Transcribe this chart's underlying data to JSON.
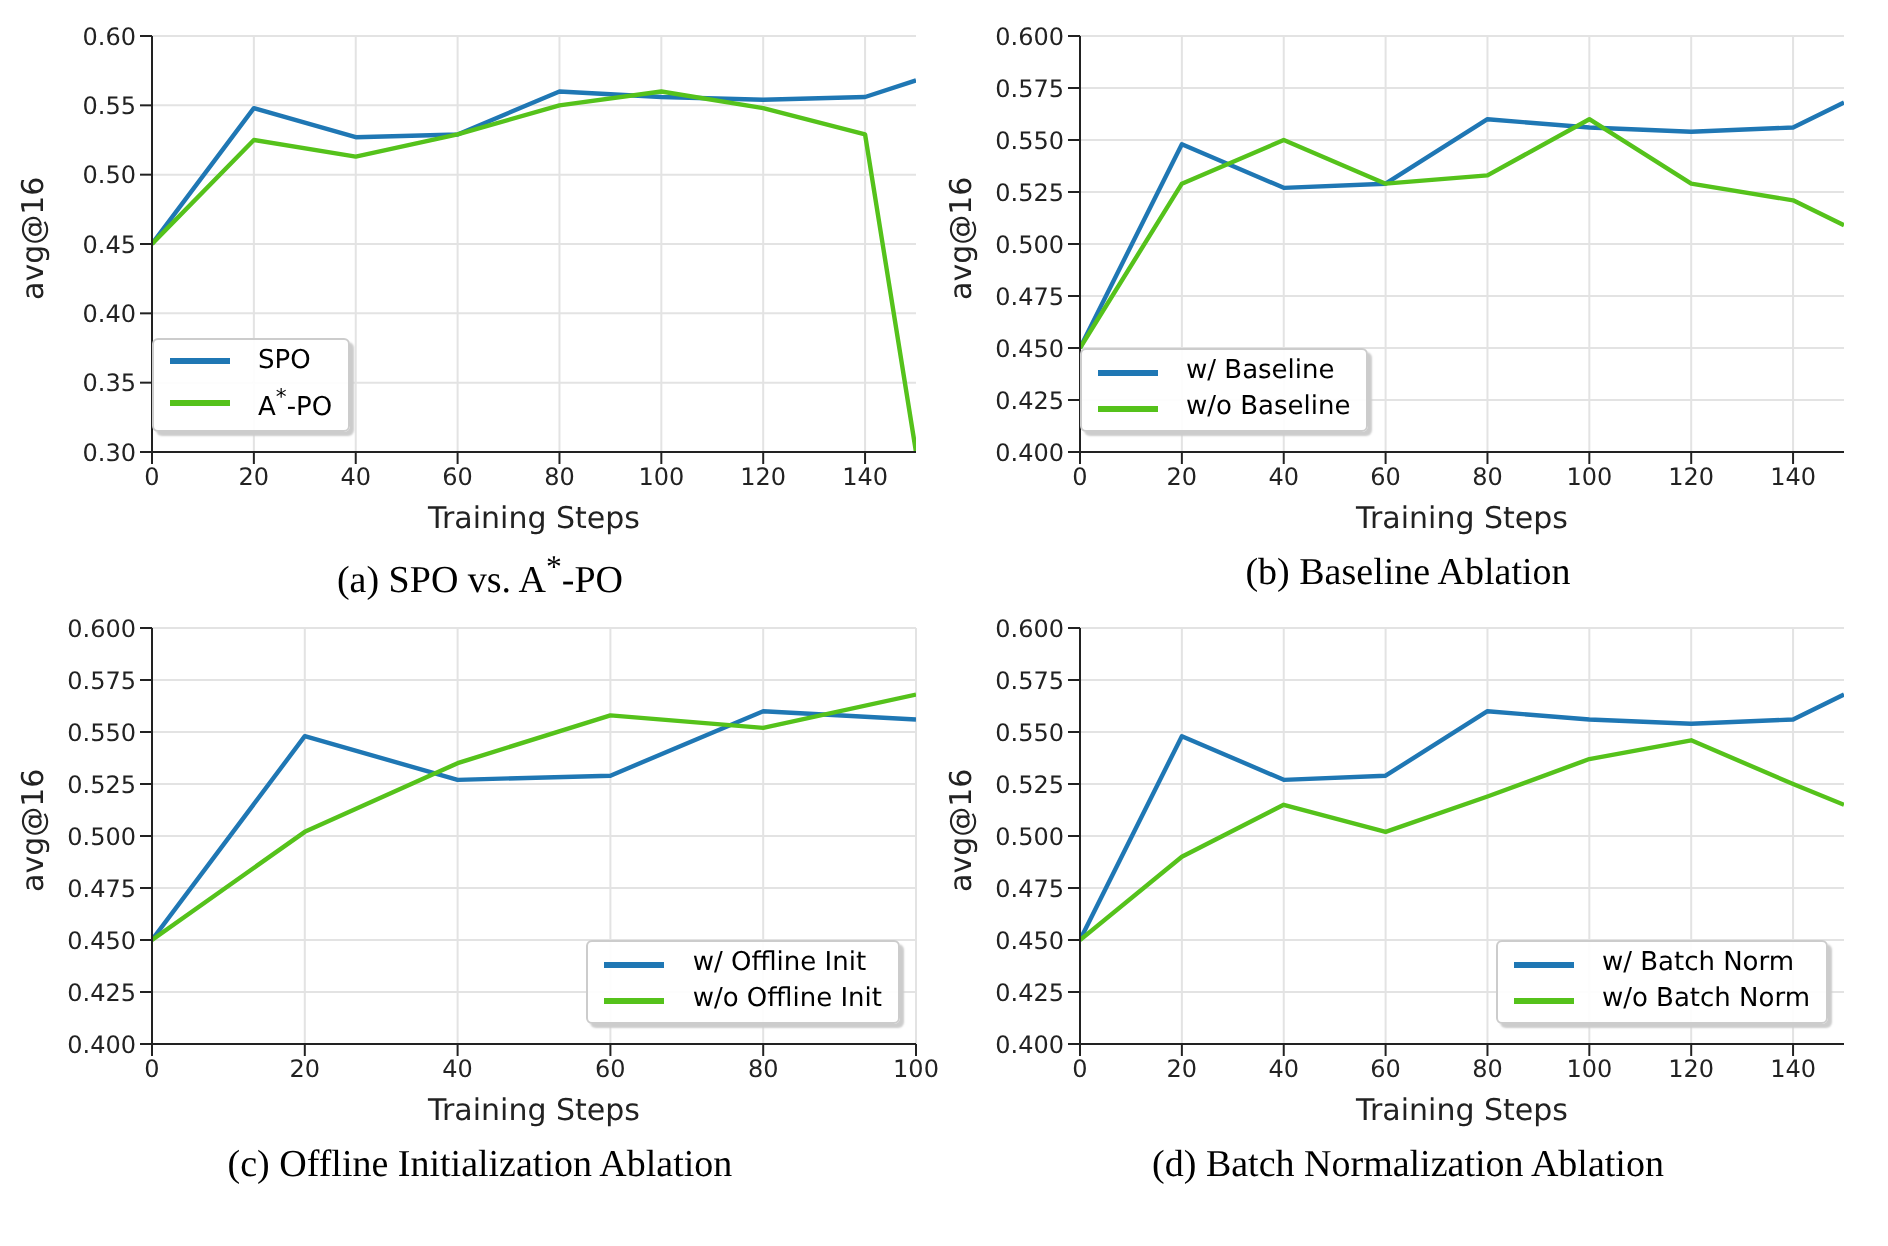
{
  "chart_data": [
    {
      "type": "line",
      "title": "(a) SPO vs. A$^{*}$-PO",
      "xlabel": "Training Steps",
      "ylabel": "avg@16",
      "x": [
        0,
        20,
        40,
        60,
        80,
        100,
        120,
        140,
        150
      ],
      "xlim": [
        0,
        150
      ],
      "xticks": [
        0,
        20,
        40,
        60,
        80,
        100,
        120,
        140
      ],
      "ylim": [
        0.3,
        0.6
      ],
      "yticks": [
        {
          "value": 0.3,
          "label": "0.30"
        },
        {
          "value": 0.35,
          "label": "0.35"
        },
        {
          "value": 0.4,
          "label": "0.40"
        },
        {
          "value": 0.45,
          "label": "0.45"
        },
        {
          "value": 0.5,
          "label": "0.50"
        },
        {
          "value": 0.55,
          "label": "0.55"
        },
        {
          "value": 0.6,
          "label": "0.60"
        }
      ],
      "grid": true,
      "legend": "bottom left",
      "series": [
        {
          "name": "SPO",
          "color": "#1f77b4",
          "values": [
            0.45,
            0.548,
            0.527,
            0.529,
            0.56,
            0.556,
            0.554,
            0.556,
            0.568
          ]
        },
        {
          "name": "A$^{*}$-PO",
          "color": "#55c21b",
          "values": [
            0.45,
            0.525,
            0.513,
            0.529,
            0.55,
            0.56,
            0.548,
            0.529,
            0.3
          ]
        }
      ]
    },
    {
      "type": "line",
      "title": "(b) Baseline Ablation",
      "xlabel": "Training Steps",
      "ylabel": "avg@16",
      "x": [
        0,
        20,
        40,
        60,
        80,
        100,
        120,
        140,
        150
      ],
      "xlim": [
        0,
        150
      ],
      "xticks": [
        0,
        20,
        40,
        60,
        80,
        100,
        120,
        140
      ],
      "ylim": [
        0.4,
        0.6
      ],
      "yticks": [
        {
          "value": 0.4,
          "label": "0.400"
        },
        {
          "value": 0.425,
          "label": "0.425"
        },
        {
          "value": 0.45,
          "label": "0.450"
        },
        {
          "value": 0.475,
          "label": "0.475"
        },
        {
          "value": 0.5,
          "label": "0.500"
        },
        {
          "value": 0.525,
          "label": "0.525"
        },
        {
          "value": 0.55,
          "label": "0.550"
        },
        {
          "value": 0.575,
          "label": "0.575"
        },
        {
          "value": 0.6,
          "label": "0.600"
        }
      ],
      "grid": true,
      "legend": "bottom left",
      "series": [
        {
          "name": "w/ Baseline",
          "color": "#1f77b4",
          "values": [
            0.45,
            0.548,
            0.527,
            0.529,
            0.56,
            0.556,
            0.554,
            0.556,
            0.568
          ]
        },
        {
          "name": "w/o Baseline",
          "color": "#55c21b",
          "values": [
            0.45,
            0.529,
            0.55,
            0.529,
            0.533,
            0.56,
            0.529,
            0.521,
            0.509
          ]
        }
      ]
    },
    {
      "type": "line",
      "title": "(c) Offline Initialization Ablation",
      "xlabel": "Training Steps",
      "ylabel": "avg@16",
      "x": [
        0,
        20,
        40,
        60,
        80,
        100
      ],
      "xlim": [
        0,
        100
      ],
      "xticks": [
        0,
        20,
        40,
        60,
        80,
        100
      ],
      "ylim": [
        0.4,
        0.6
      ],
      "yticks": [
        {
          "value": 0.4,
          "label": "0.400"
        },
        {
          "value": 0.425,
          "label": "0.425"
        },
        {
          "value": 0.45,
          "label": "0.450"
        },
        {
          "value": 0.475,
          "label": "0.475"
        },
        {
          "value": 0.5,
          "label": "0.500"
        },
        {
          "value": 0.525,
          "label": "0.525"
        },
        {
          "value": 0.55,
          "label": "0.550"
        },
        {
          "value": 0.575,
          "label": "0.575"
        },
        {
          "value": 0.6,
          "label": "0.600"
        }
      ],
      "grid": true,
      "legend": "bottom right",
      "series": [
        {
          "name": "w/ Offline Init",
          "color": "#1f77b4",
          "values": [
            0.45,
            0.548,
            0.527,
            0.529,
            0.56,
            0.556
          ]
        },
        {
          "name": "w/o Offline Init",
          "color": "#55c21b",
          "values": [
            0.45,
            0.502,
            0.535,
            0.558,
            0.552,
            0.568
          ]
        }
      ]
    },
    {
      "type": "line",
      "title": "(d) Batch Normalization Ablation",
      "xlabel": "Training Steps",
      "ylabel": "avg@16",
      "x": [
        0,
        20,
        40,
        60,
        80,
        100,
        120,
        140,
        150
      ],
      "xlim": [
        0,
        150
      ],
      "xticks": [
        0,
        20,
        40,
        60,
        80,
        100,
        120,
        140
      ],
      "ylim": [
        0.4,
        0.6
      ],
      "yticks": [
        {
          "value": 0.4,
          "label": "0.400"
        },
        {
          "value": 0.425,
          "label": "0.425"
        },
        {
          "value": 0.45,
          "label": "0.450"
        },
        {
          "value": 0.475,
          "label": "0.475"
        },
        {
          "value": 0.5,
          "label": "0.500"
        },
        {
          "value": 0.525,
          "label": "0.525"
        },
        {
          "value": 0.55,
          "label": "0.550"
        },
        {
          "value": 0.575,
          "label": "0.575"
        },
        {
          "value": 0.6,
          "label": "0.600"
        }
      ],
      "grid": true,
      "legend": "bottom right",
      "series": [
        {
          "name": "w/ Batch Norm",
          "color": "#1f77b4",
          "values": [
            0.45,
            0.548,
            0.527,
            0.529,
            0.56,
            0.556,
            0.554,
            0.556,
            0.568
          ]
        },
        {
          "name": "w/o Batch Norm",
          "color": "#55c21b",
          "values": [
            0.45,
            0.49,
            0.515,
            0.502,
            0.519,
            0.537,
            0.546,
            0.525,
            0.515
          ]
        }
      ]
    }
  ]
}
